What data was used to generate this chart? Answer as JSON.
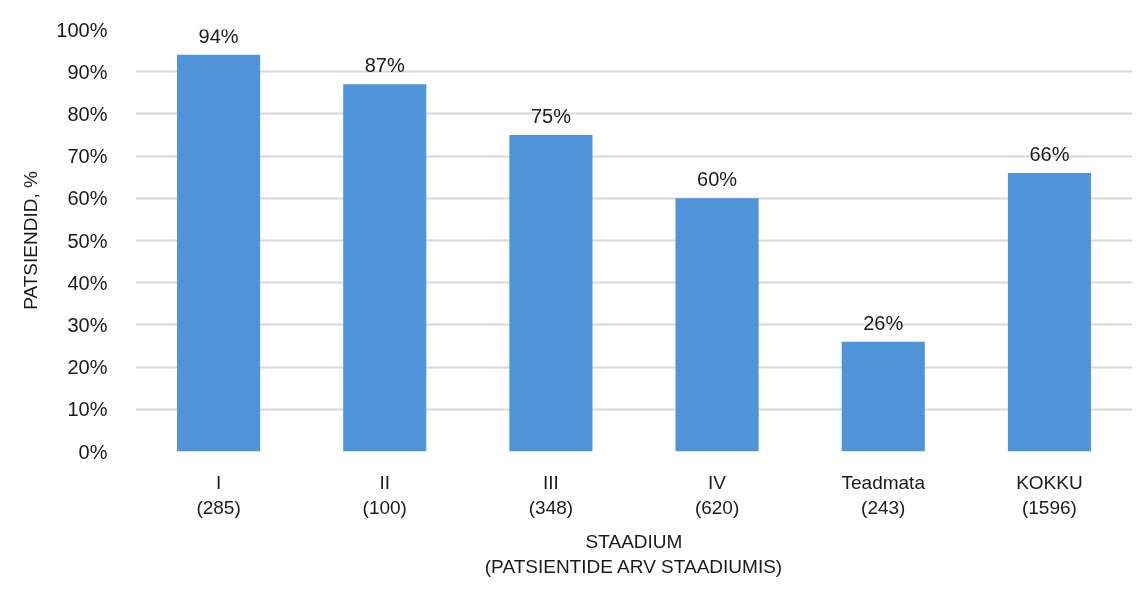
{
  "chart_data": {
    "type": "bar",
    "categories": [
      "I\n(285)",
      "II\n(100)",
      "III\n(348)",
      "IV\n(620)",
      "Teadmata\n(243)",
      "KOKKU\n(1596)"
    ],
    "values": [
      94,
      87,
      75,
      60,
      26,
      66
    ],
    "color": "#4f93d8",
    "value_labels": [
      "94%",
      "87%",
      "75%",
      "60%",
      "26%",
      "66%"
    ],
    "ylim": [
      0,
      100
    ],
    "yticks": [
      {
        "value": 0,
        "label": "0%"
      },
      {
        "value": 10,
        "label": "10%"
      },
      {
        "value": 20,
        "label": "20%"
      },
      {
        "value": 30,
        "label": "30%"
      },
      {
        "value": 40,
        "label": "40%"
      },
      {
        "value": 50,
        "label": "50%"
      },
      {
        "value": 60,
        "label": "60%"
      },
      {
        "value": 70,
        "label": "70%"
      },
      {
        "value": 80,
        "label": "80%"
      },
      {
        "value": 90,
        "label": "90%"
      },
      {
        "value": 100,
        "label": "100%"
      }
    ],
    "xlabel": "STAADIUM\n(PATSIENTIDE ARV STAADIUMIS)",
    "ylabel": "PATSIENDID, %",
    "grid": "y"
  }
}
